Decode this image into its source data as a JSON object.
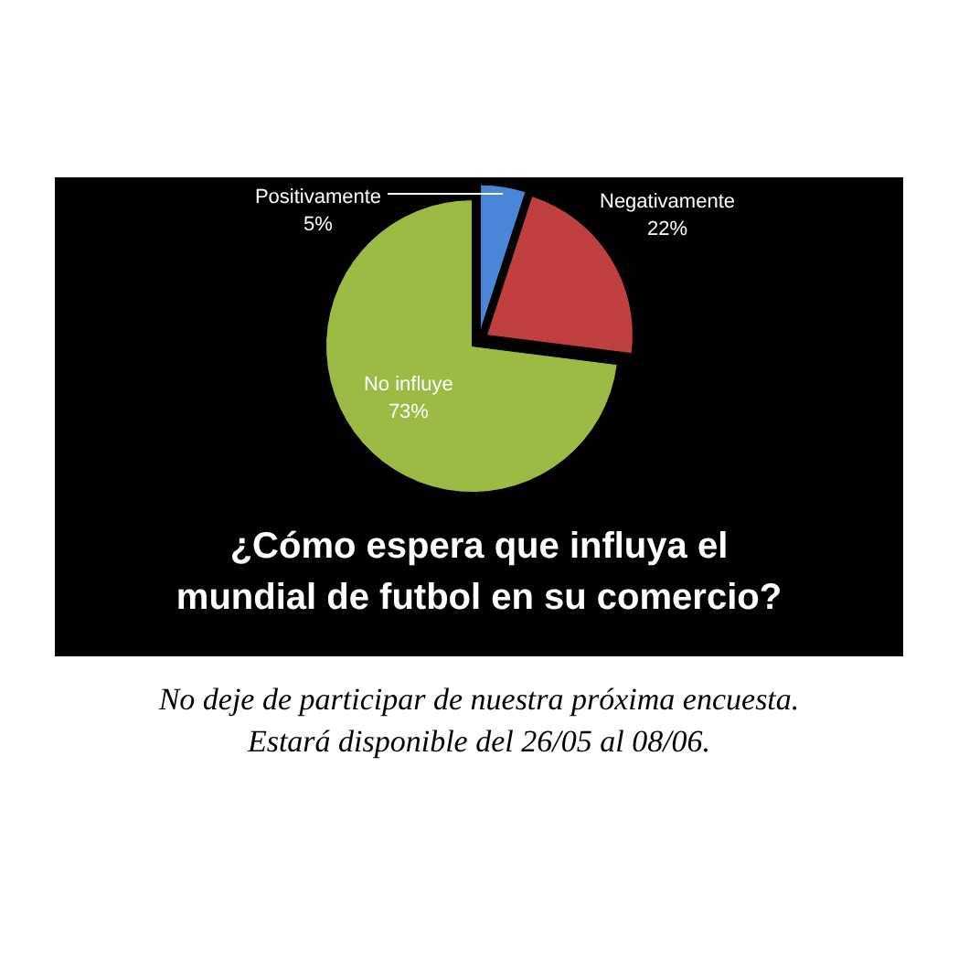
{
  "chart_data": {
    "type": "pie",
    "title": "¿Cómo espera que influya el mundial de futbol en su comercio?",
    "categories": [
      "Positivamente",
      "Negativamente",
      "No influye"
    ],
    "values": [
      5,
      22,
      73
    ],
    "colors": [
      "#4a86d8",
      "#c0403f",
      "#9bbb45"
    ],
    "value_labels": [
      "5%",
      "22%",
      "73%"
    ],
    "annotations": [
      "No deje de participar de nuestra próxima encuesta.",
      "Estará disponible del 26/05 al 08/06."
    ]
  }
}
